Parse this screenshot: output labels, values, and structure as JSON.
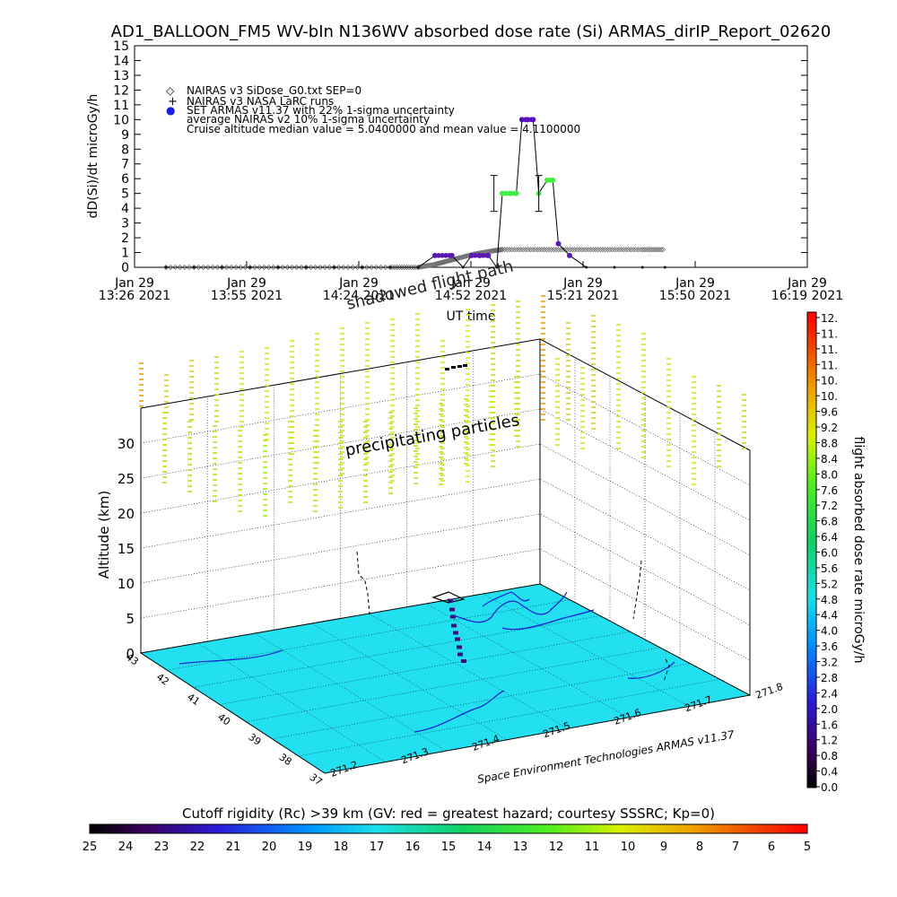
{
  "title": "AD1_BALLOON_FM5 WV-bIn N136WV absorbed dose rate (Si) ARMAS_dirIP_Report_02620",
  "chart_data": [
    {
      "type": "line",
      "ylabel": "dD(Si)/dt microGy/h",
      "xlabel": "UT time",
      "ylim": [
        0,
        15
      ],
      "yticks": [
        "0",
        "1",
        "2",
        "3",
        "4",
        "5",
        "6",
        "7",
        "8",
        "9",
        "10",
        "11",
        "12",
        "13",
        "14",
        "15"
      ],
      "xticks": [
        {
          "line1": "Jan 29",
          "line2": "13:26 2021"
        },
        {
          "line1": "Jan 29",
          "line2": "13:55 2021"
        },
        {
          "line1": "Jan 29",
          "line2": "14:24 2021"
        },
        {
          "line1": "Jan 29",
          "line2": "14:52 2021"
        },
        {
          "line1": "Jan 29",
          "line2": "15:21 2021"
        },
        {
          "line1": "Jan 29",
          "line2": "15:50 2021"
        },
        {
          "line1": "Jan 29",
          "line2": "16:19 2021"
        }
      ],
      "legend": [
        {
          "symbol": "◇",
          "text": "NAIRAS v3 SiDose_G0.txt SEP=0"
        },
        {
          "symbol": "+",
          "text": "NAIRAS v3 NASA LaRC runs"
        },
        {
          "symbol": "●",
          "text": "SET ARMAS v11.37 with 22% 1-sigma uncertainty"
        },
        {
          "symbol": "",
          "text": "average NAIRAS v2 10% 1-sigma uncertainty"
        },
        {
          "symbol": "",
          "text": "Cruise altitude median value = 5.0400000 and mean value = 4.1100000"
        }
      ],
      "legend_position": "top-left",
      "series": [
        {
          "name": "SET ARMAS v11.37",
          "color_scale": true,
          "x": [
            0.0,
            0.05,
            0.1,
            0.15,
            0.2,
            0.25,
            0.3,
            0.35,
            0.4,
            0.45,
            0.48,
            0.51,
            0.53,
            0.545,
            0.56,
            0.575,
            0.59,
            0.6,
            0.615,
            0.625,
            0.635,
            0.645,
            0.655,
            0.665,
            0.68,
            0.69,
            0.7,
            0.72,
            0.75,
            0.8,
            0.85,
            0.89
          ],
          "values": [
            0,
            0,
            0,
            0,
            0,
            0,
            0,
            0,
            0,
            0,
            0.8,
            0.8,
            0,
            0.8,
            0.8,
            0.8,
            0,
            5,
            5,
            5,
            10,
            10,
            10,
            5,
            5.9,
            5.9,
            1.6,
            0.8,
            0,
            0,
            0,
            0
          ]
        },
        {
          "name": "NAIRAS v3 SiDose_G0.txt SEP=0",
          "x": [
            0.0,
            0.1,
            0.2,
            0.3,
            0.4,
            0.45,
            0.48,
            0.5,
            0.52,
            0.55,
            0.58,
            0.6,
            0.65,
            0.7,
            0.75,
            0.8,
            0.85,
            0.89
          ],
          "values": [
            0,
            0,
            0,
            0,
            0,
            0,
            0.2,
            0.4,
            0.6,
            0.9,
            1.1,
            1.2,
            1.2,
            1.2,
            1.2,
            1.2,
            1.2,
            1.2
          ]
        }
      ],
      "error_bars": [
        {
          "x": 0.585,
          "y": 5.0,
          "label": ""
        },
        {
          "x": 0.665,
          "y": 5.0,
          "label": ""
        }
      ],
      "annotations": [
        "shadowed flight path"
      ]
    },
    {
      "type": "scatter",
      "projection": "3d",
      "zlabel": "Altitude (km)",
      "zlim": [
        0,
        35
      ],
      "zticks": [
        "0",
        "5",
        "10",
        "15",
        "20",
        "25",
        "30"
      ],
      "lat_ticks": [
        "43",
        "42",
        "41",
        "40",
        "39",
        "38",
        "37"
      ],
      "lon_ticks": [
        "271.2",
        "271.3",
        "271.4",
        "271.5",
        "271.6",
        "271.7",
        "271.8"
      ],
      "annotation": "precipitating particles",
      "credit": "Space Environment Technologies ARMAS v11.37"
    },
    {
      "type": "heatmap",
      "role": "vertical colorbar",
      "label": "flight absorbed dose rate microGy/h",
      "ticks": [
        "0.0",
        "0.4",
        "0.8",
        "1.2",
        "1.6",
        "2.0",
        "2.4",
        "2.8",
        "3.2",
        "3.6",
        "4.0",
        "4.4",
        "4.8",
        "5.2",
        "5.6",
        "6.0",
        "6.4",
        "6.8",
        "7.2",
        "7.6",
        "8.0",
        "8.4",
        "8.8",
        "9.2",
        "9.6",
        "10.",
        "10.",
        "11.",
        "11.",
        "11.",
        "12."
      ]
    },
    {
      "type": "heatmap",
      "role": "horizontal colorbar",
      "label": "Cutoff rigidity (Rc) >39 km (GV: red = greatest hazard; courtesy SSSRC; Kp=0)",
      "ticks": [
        "25",
        "24",
        "23",
        "22",
        "21",
        "20",
        "19",
        "18",
        "17",
        "16",
        "15",
        "14",
        "13",
        "12",
        "11",
        "10",
        "9",
        "8",
        "7",
        "6",
        "5"
      ]
    }
  ],
  "colors": {
    "ground": "#22e0f0",
    "axes": "#000000",
    "armas_low": "#2b0f4d",
    "armas_mid": "#3cf43c",
    "armas_high": "#5a0fb4",
    "nairas": "#808080"
  }
}
